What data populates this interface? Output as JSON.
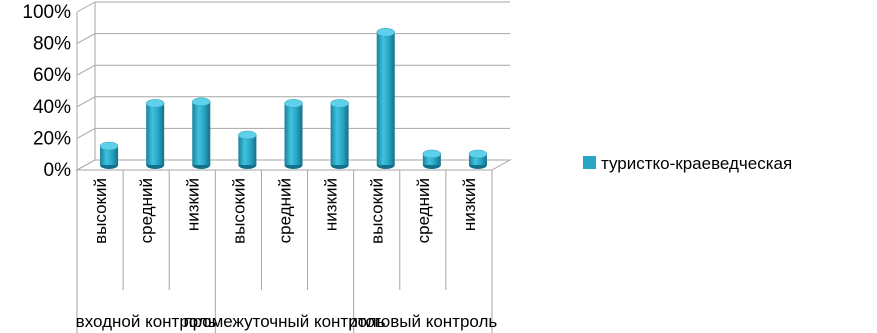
{
  "chart_data": {
    "type": "bar",
    "title": "",
    "xlabel": "",
    "ylabel": "",
    "ylim": [
      0,
      1
    ],
    "y_ticks": [
      "0%",
      "20%",
      "40%",
      "60%",
      "80%",
      "100%"
    ],
    "grid": true,
    "legend_position": "right",
    "groups": [
      {
        "label": "входной контроль",
        "categories": [
          "высокий",
          "средний",
          "низкий"
        ]
      },
      {
        "label": "промежуточный контроль",
        "categories": [
          "высокий",
          "средний",
          "низкий"
        ]
      },
      {
        "label": "итоговый контроль",
        "categories": [
          "высокий",
          "средний",
          "низкий"
        ]
      }
    ],
    "series": [
      {
        "name": "туристко-краеведческая",
        "color": "#2aa6c5",
        "values": [
          0.12,
          0.39,
          0.4,
          0.19,
          0.39,
          0.39,
          0.84,
          0.07,
          0.07
        ]
      }
    ]
  }
}
